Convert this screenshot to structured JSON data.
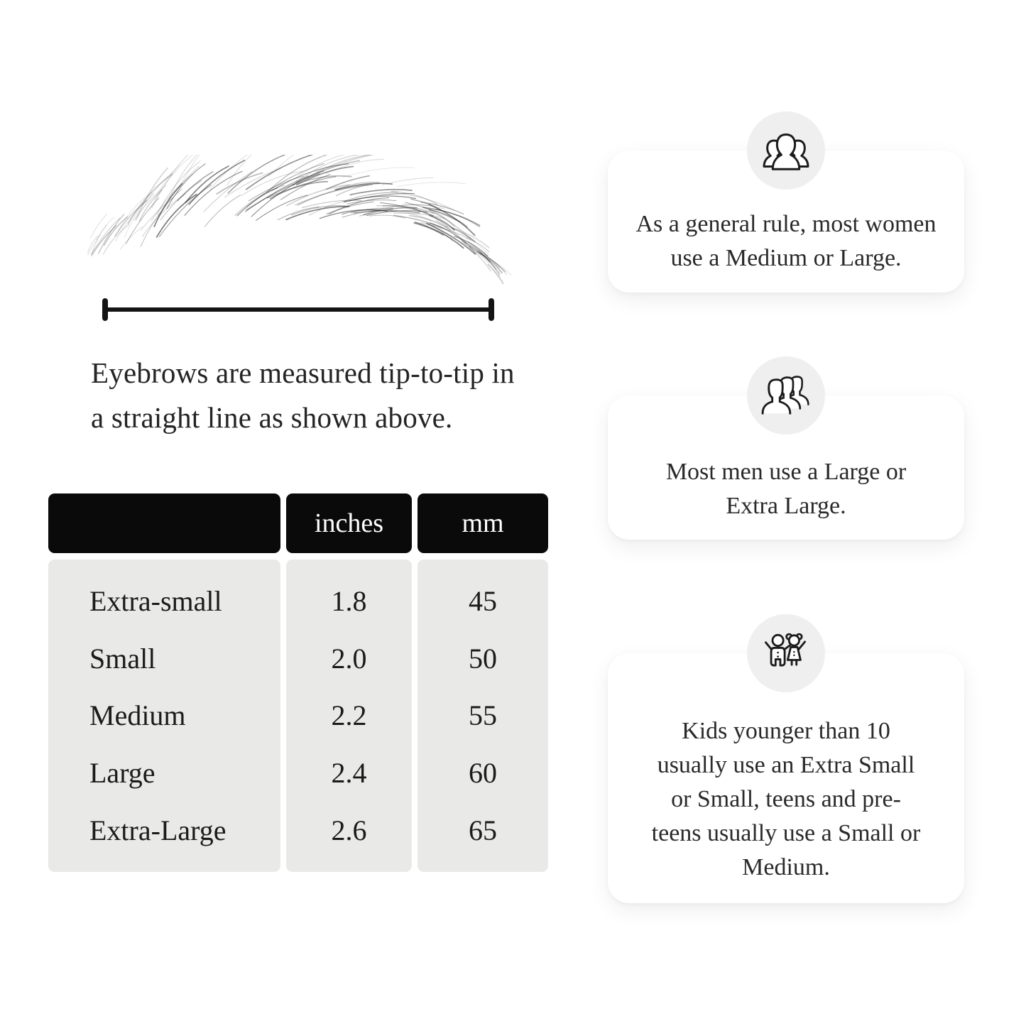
{
  "figure": {
    "caption": "Eyebrows are measured tip-to-tip in a straight line as shown above."
  },
  "size_table": {
    "columns": [
      "",
      "inches",
      "mm"
    ],
    "rows": [
      {
        "size": "Extra-small",
        "inches": "1.8",
        "mm": "45"
      },
      {
        "size": "Small",
        "inches": "2.0",
        "mm": "50"
      },
      {
        "size": "Medium",
        "inches": "2.2",
        "mm": "55"
      },
      {
        "size": "Large",
        "inches": "2.4",
        "mm": "60"
      },
      {
        "size": "Extra-Large",
        "inches": "2.6",
        "mm": "65"
      }
    ]
  },
  "cards": [
    {
      "icon": "women-group-icon",
      "text": "As a general rule, most women use a Medium or Large."
    },
    {
      "icon": "men-group-icon",
      "text": "Most men use a Large or Extra Large."
    },
    {
      "icon": "kids-icon",
      "text": "Kids younger than 10 usually use an Extra Small or Small, teens and pre-teens usually use a Small or Medium."
    }
  ],
  "colors": {
    "header_bg": "#0a0a0a",
    "header_text": "#ffffff",
    "row_bg": "#e9e9e8",
    "card_bg": "#ffffff",
    "icon_circle_bg": "#f0efef",
    "ink": "#1e1e1e"
  }
}
